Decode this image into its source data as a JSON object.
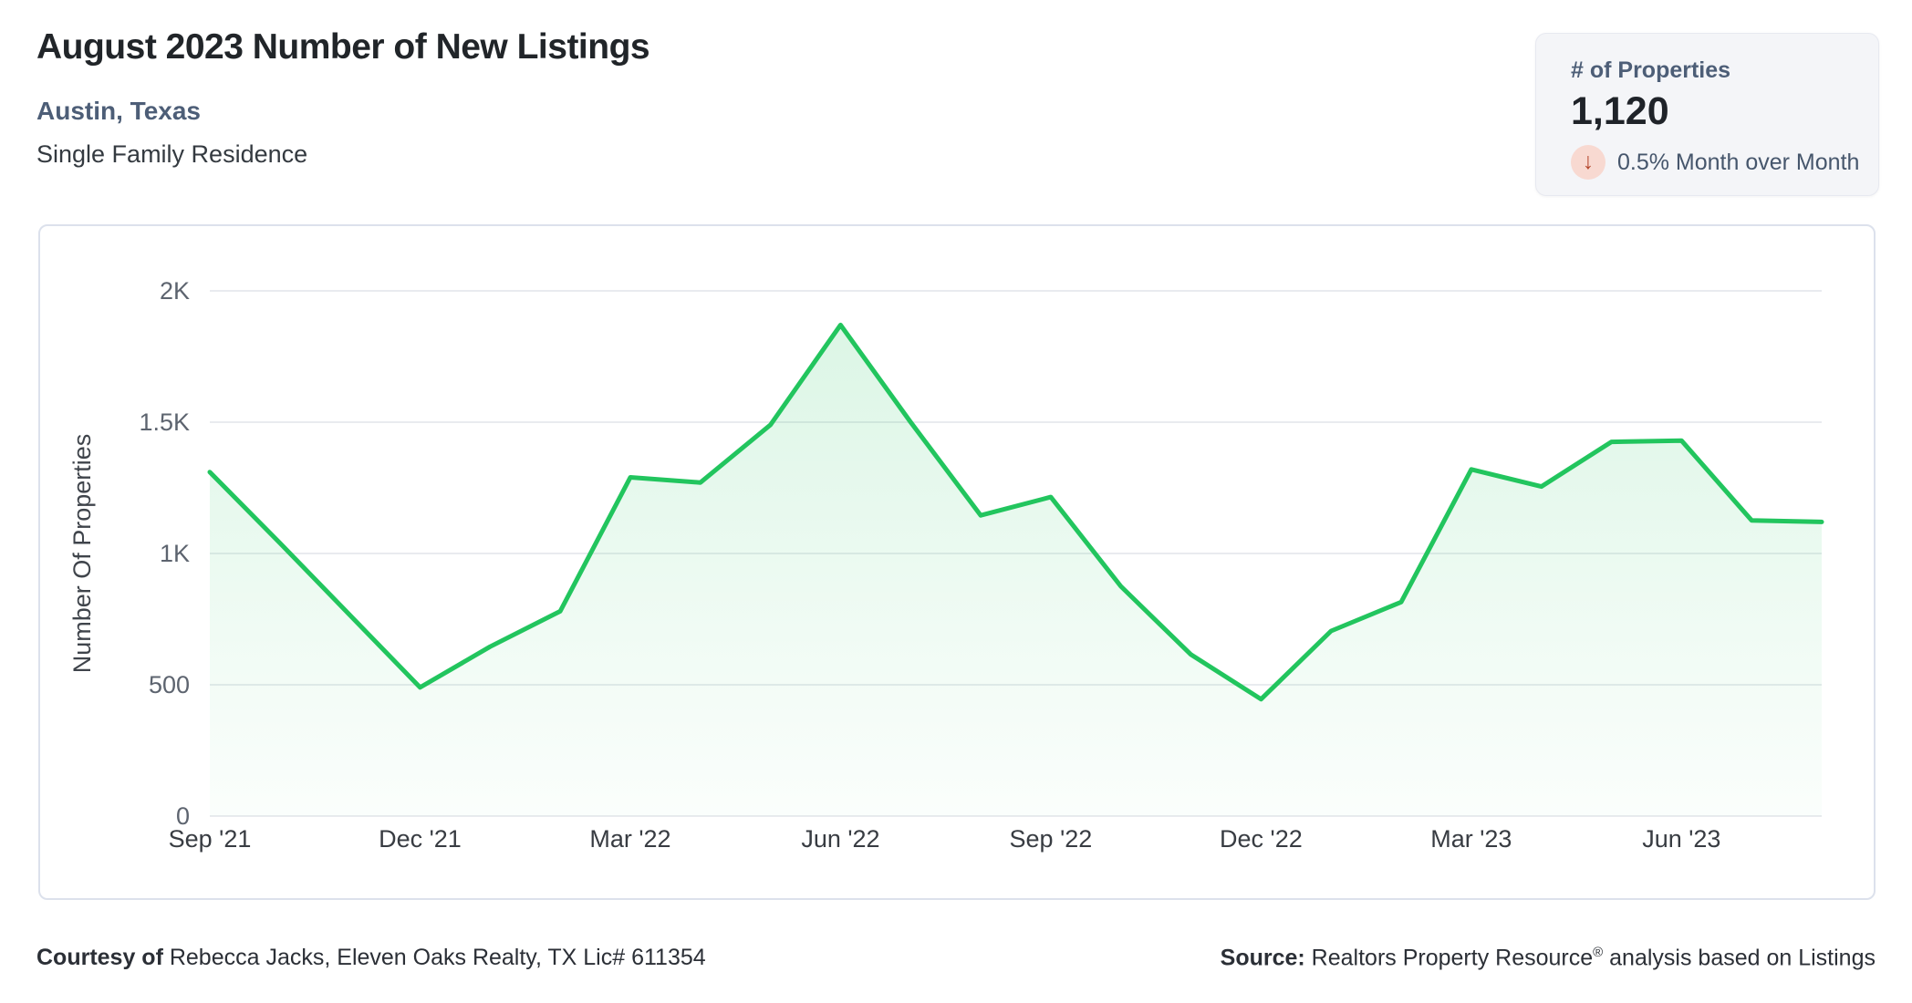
{
  "header": {
    "title": "August 2023 Number of New Listings",
    "location": "Austin, Texas",
    "property_type": "Single Family Residence"
  },
  "stats_card": {
    "label": "# of Properties",
    "value": "1,120",
    "arrow_glyph": "↓",
    "change_text": "0.5% Month over Month",
    "direction": "down",
    "arrow_color": "#b5492f",
    "arrow_bg_color": "#f8d9d1"
  },
  "footer": {
    "courtesy_bold": "Courtesy of",
    "courtesy_rest": " Rebecca Jacks, Eleven Oaks Realty, TX Lic# 611354",
    "source_bold": "Source:",
    "source_name": " Realtors Property Resource",
    "source_trademark": "®",
    "source_rest": " analysis based on Listings"
  },
  "chart_data": {
    "type": "area",
    "title": "August 2023 Number of New Listings",
    "xlabel": "",
    "ylabel": "Number Of Properties",
    "x": [
      "Sep '21",
      "Oct '21",
      "Nov '21",
      "Dec '21",
      "Jan '22",
      "Feb '22",
      "Mar '22",
      "Apr '22",
      "May '22",
      "Jun '22",
      "Jul '22",
      "Aug '22",
      "Sep '22",
      "Oct '22",
      "Nov '22",
      "Dec '22",
      "Jan '23",
      "Feb '23",
      "Mar '23",
      "Apr '23",
      "May '23",
      "Jun '23",
      "Jul '23",
      "Aug '23"
    ],
    "values": [
      1310,
      1040,
      765,
      490,
      645,
      780,
      1290,
      1270,
      1490,
      1870,
      1500,
      1145,
      1215,
      875,
      615,
      445,
      705,
      815,
      1320,
      1255,
      1425,
      1430,
      1126,
      1120
    ],
    "ylim": [
      0,
      2000
    ],
    "yticks": [
      0,
      500,
      1000,
      1500,
      2000
    ],
    "ytick_labels": [
      "0",
      "500",
      "1K",
      "1.5K",
      "2K"
    ],
    "xtick_every": 3,
    "grid": true,
    "legend": "none",
    "line_color": "#22c55e",
    "fill_color": "#22c55e",
    "grid_color": "#e9ebef",
    "ytick_color": "#5d646f",
    "xtick_color": "#383c42",
    "axis_title_color": "#3f444b"
  }
}
